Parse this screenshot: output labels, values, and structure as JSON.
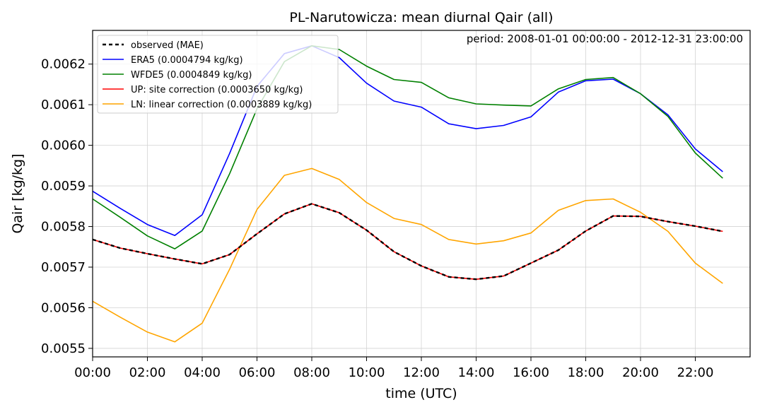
{
  "chart_data": {
    "type": "line",
    "title": "PL-Narutowicza: mean diurnal Qair (all)",
    "annotation": "period: 2008-01-01 00:00:00 - 2012-12-31 23:00:00",
    "xlabel": "time (UTC)",
    "ylabel": "Qair [kg/kg]",
    "x": [
      0,
      1,
      2,
      3,
      4,
      5,
      6,
      7,
      8,
      9,
      10,
      11,
      12,
      13,
      14,
      15,
      16,
      17,
      18,
      19,
      20,
      21,
      22,
      23
    ],
    "xlim": [
      0,
      24
    ],
    "ylim": [
      0.005479,
      0.006283
    ],
    "x_ticks": [
      0,
      2,
      4,
      6,
      8,
      10,
      12,
      14,
      16,
      18,
      20,
      22
    ],
    "x_tick_labels": [
      "00:00",
      "02:00",
      "04:00",
      "06:00",
      "08:00",
      "10:00",
      "12:00",
      "14:00",
      "16:00",
      "18:00",
      "20:00",
      "22:00"
    ],
    "y_ticks": [
      0.0055,
      0.0056,
      0.0057,
      0.0058,
      0.0059,
      0.006,
      0.0061,
      0.0062
    ],
    "y_tick_labels": [
      "0.0055",
      "0.0056",
      "0.0057",
      "0.0058",
      "0.0059",
      "0.0060",
      "0.0061",
      "0.0062"
    ],
    "grid": true,
    "legend_position": "top-left",
    "series": [
      {
        "name": "ERA5 (0.0004794 kg/kg)",
        "color": "#0000ff",
        "style": "solid",
        "values": [
          0.005887,
          0.005845,
          0.005805,
          0.005778,
          0.005829,
          0.00598,
          0.006145,
          0.006226,
          0.006245,
          0.006216,
          0.006153,
          0.006109,
          0.006094,
          0.006053,
          0.006041,
          0.006049,
          0.00607,
          0.006131,
          0.006159,
          0.006163,
          0.006127,
          0.006075,
          0.005991,
          0.005935
        ]
      },
      {
        "name": "WFDE5 (0.0004849 kg/kg)",
        "color": "#008000",
        "style": "solid",
        "values": [
          0.005868,
          0.005823,
          0.005777,
          0.005745,
          0.005789,
          0.00593,
          0.00609,
          0.006206,
          0.006245,
          0.006236,
          0.006195,
          0.006162,
          0.006155,
          0.006117,
          0.006102,
          0.006099,
          0.006097,
          0.006139,
          0.006162,
          0.006167,
          0.006127,
          0.006071,
          0.005981,
          0.005919
        ]
      },
      {
        "name": "UP: site correction (0.0003650 kg/kg)",
        "color": "#ff0000",
        "style": "solid",
        "values": [
          0.005768,
          0.005747,
          0.005733,
          0.00572,
          0.005708,
          0.005731,
          0.005782,
          0.005831,
          0.005856,
          0.005834,
          0.005791,
          0.005738,
          0.005703,
          0.005676,
          0.00567,
          0.005678,
          0.00571,
          0.005742,
          0.005789,
          0.005826,
          0.005825,
          0.005812,
          0.005801,
          0.005788
        ]
      },
      {
        "name": "LN: linear correction (0.0003889 kg/kg)",
        "color": "#ffa500",
        "style": "solid",
        "values": [
          0.005616,
          0.005577,
          0.00554,
          0.005516,
          0.005562,
          0.005695,
          0.005842,
          0.005926,
          0.005943,
          0.005916,
          0.005859,
          0.00582,
          0.005805,
          0.005768,
          0.005757,
          0.005765,
          0.005784,
          0.00584,
          0.005864,
          0.005868,
          0.005835,
          0.005788,
          0.00571,
          0.00566
        ]
      },
      {
        "name": "observed (MAE)",
        "color": "#000000",
        "style": "dashed",
        "values": [
          0.005768,
          0.005747,
          0.005733,
          0.00572,
          0.005708,
          0.005731,
          0.005782,
          0.005831,
          0.005856,
          0.005834,
          0.005791,
          0.005738,
          0.005703,
          0.005676,
          0.00567,
          0.005678,
          0.00571,
          0.005742,
          0.005789,
          0.005826,
          0.005825,
          0.005812,
          0.005801,
          0.005788
        ]
      }
    ],
    "legend_order": [
      "observed (MAE)",
      "ERA5 (0.0004794 kg/kg)",
      "WFDE5 (0.0004849 kg/kg)",
      "UP: site correction (0.0003650 kg/kg)",
      "LN: linear correction (0.0003889 kg/kg)"
    ]
  }
}
